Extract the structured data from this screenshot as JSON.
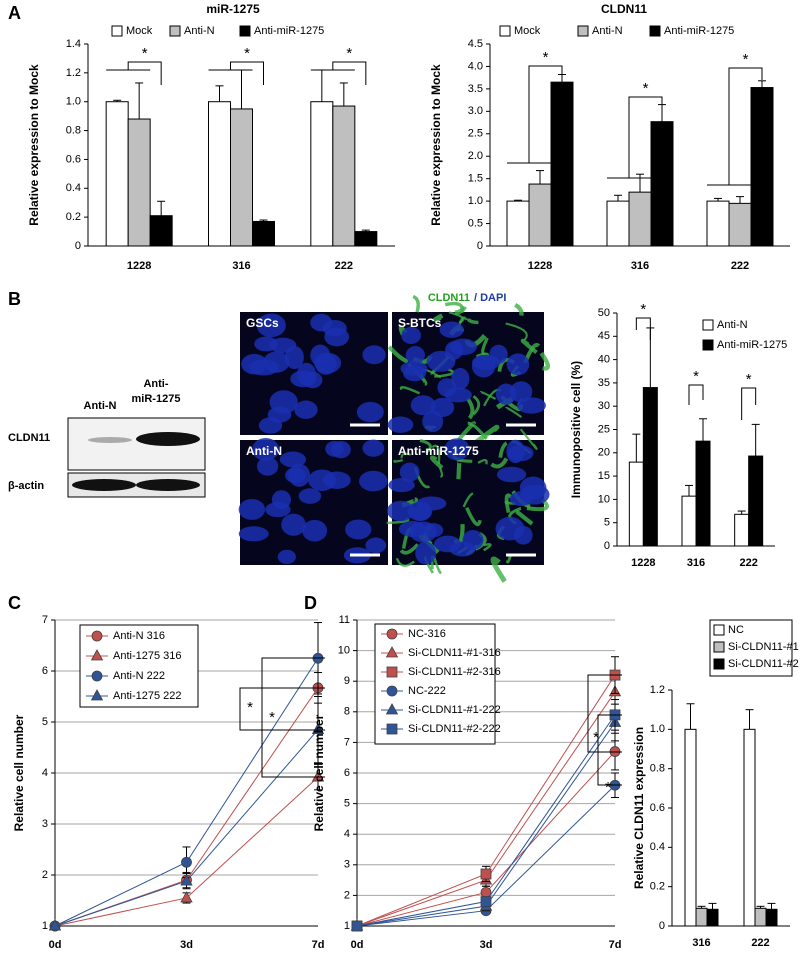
{
  "panel_labels": [
    "A",
    "B",
    "C",
    "D"
  ],
  "western_blot": {
    "lanes": [
      [
        "Anti-N"
      ],
      [
        "Anti-",
        "miR-1275"
      ]
    ],
    "rows": [
      "CLDN11",
      "β-actin"
    ]
  },
  "micrographs": {
    "stain": [
      "CLDN11",
      "/ DAPI"
    ],
    "panels": [
      "GSCs",
      "S-BTCs",
      "Anti-N",
      "Anti-miR-1275"
    ]
  },
  "chart_data": [
    {
      "type": "bar",
      "title": "miR-1275",
      "y_label": "Relative expression to Mock",
      "categories": [
        "1228",
        "316",
        "222"
      ],
      "series": [
        {
          "name": "Mock",
          "color": "#ffffff",
          "values": [
            1.0,
            1.0,
            1.0
          ],
          "errors": [
            0.01,
            0.11,
            0.22
          ]
        },
        {
          "name": "Anti-N",
          "color": "#bfbfbf",
          "values": [
            0.88,
            0.95,
            0.97
          ],
          "errors": [
            0.25,
            0.27,
            0.16
          ]
        },
        {
          "name": "Anti-miR-1275",
          "color": "#000000",
          "values": [
            0.21,
            0.17,
            0.1
          ],
          "errors": [
            0.1,
            0.01,
            0.01
          ]
        }
      ],
      "ylim": [
        0,
        1.4
      ],
      "yticks": [
        0,
        0.2,
        0.4,
        0.6,
        0.8,
        {
          "value": 1,
          "label": "1.0"
        },
        1.2,
        1.4
      ],
      "annotations": [
        "*",
        "*",
        "*"
      ]
    },
    {
      "type": "bar",
      "title": "CLDN11",
      "y_label": "Relative expression to Mock",
      "categories": [
        "1228",
        "316",
        "222"
      ],
      "series": [
        {
          "name": "Mock",
          "color": "#ffffff",
          "values": [
            1.0,
            1.0,
            1.0
          ],
          "errors": [
            0.02,
            0.13,
            0.06
          ]
        },
        {
          "name": "Anti-N",
          "color": "#bfbfbf",
          "values": [
            1.38,
            1.2,
            0.95
          ],
          "errors": [
            0.3,
            0.4,
            0.15
          ]
        },
        {
          "name": "Anti-miR-1275",
          "color": "#000000",
          "values": [
            3.65,
            2.77,
            3.53
          ],
          "errors": [
            0.17,
            0.38,
            0.15
          ]
        }
      ],
      "ylim": [
        0,
        4.5
      ],
      "yticks": [
        0,
        0.5,
        {
          "value": 1,
          "label": "1.0"
        },
        1.5,
        {
          "value": 2,
          "label": "2.0"
        },
        2.5,
        {
          "value": 3,
          "label": "3.0"
        },
        3.5,
        {
          "value": 4,
          "label": "4.0"
        },
        4.5
      ],
      "annotations": [
        "*",
        "*",
        "*"
      ]
    },
    {
      "type": "bar",
      "y_label": "Immunopositive cell (%)",
      "categories": [
        "1228",
        "316",
        "222"
      ],
      "series": [
        {
          "name": "Anti-N",
          "color": "#ffffff",
          "values": [
            18,
            10.7,
            6.8
          ],
          "errors": [
            6,
            2.3,
            0.7
          ]
        },
        {
          "name": "Anti-miR-1275",
          "color": "#000000",
          "values": [
            34,
            22.5,
            19.3
          ],
          "errors": [
            12.8,
            4.8,
            6.8
          ]
        }
      ],
      "ylim": [
        0,
        50
      ],
      "yticks": [
        0,
        5,
        10,
        15,
        20,
        25,
        30,
        35,
        40,
        45,
        50
      ],
      "annotations": [
        "*",
        "*",
        "*"
      ]
    },
    {
      "type": "line",
      "y_label": "Relative cell number",
      "categories": [
        "0d",
        "3d",
        "7d"
      ],
      "series": [
        {
          "name": "Anti-N 316",
          "color": "#c0504d",
          "marker": "circle",
          "values": [
            1,
            1.9,
            5.67
          ],
          "errors": [
            0,
            0.15,
            0.3
          ]
        },
        {
          "name": "Anti-1275 316",
          "color": "#c0504d",
          "marker": "triangle",
          "values": [
            1,
            1.55,
            3.92
          ],
          "errors": [
            0,
            0.1,
            0.25
          ]
        },
        {
          "name": "Anti-N 222",
          "color": "#2f5597",
          "marker": "circle",
          "values": [
            1,
            2.25,
            6.25
          ],
          "errors": [
            0,
            0.3,
            0.7
          ]
        },
        {
          "name": "Anti-1275 222",
          "color": "#2f5597",
          "marker": "triangle",
          "values": [
            1,
            1.88,
            4.85
          ],
          "errors": [
            0,
            0.15,
            0.65
          ]
        }
      ],
      "ylim": [
        1,
        7
      ],
      "yticks": [
        1,
        2,
        3,
        4,
        5,
        6,
        7
      ],
      "grid": true,
      "annotations": [
        "*",
        "*"
      ]
    },
    {
      "type": "line",
      "y_label": "Relative cell number",
      "categories": [
        "0d",
        "3d",
        "7d"
      ],
      "series": [
        {
          "name": "NC-316",
          "color": "#c0504d",
          "marker": "circle",
          "values": [
            1,
            2.1,
            6.7
          ],
          "errors": [
            0,
            0.2,
            0.6
          ]
        },
        {
          "name": "Si-CLDN11-#1-316",
          "color": "#c0504d",
          "marker": "triangle",
          "values": [
            1,
            2.5,
            8.65
          ],
          "errors": [
            0,
            0.2,
            0.7
          ]
        },
        {
          "name": "Si-CLDN11-#2-316",
          "color": "#c0504d",
          "marker": "square",
          "values": [
            1,
            2.7,
            9.2
          ],
          "errors": [
            0,
            0.25,
            0.6
          ]
        },
        {
          "name": "NC-222",
          "color": "#2f5597",
          "marker": "circle",
          "values": [
            1,
            1.5,
            5.6
          ],
          "errors": [
            0,
            0.1,
            0.4
          ]
        },
        {
          "name": "Si-CLDN11-#1-222",
          "color": "#2f5597",
          "marker": "triangle",
          "values": [
            1,
            1.65,
            7.65
          ],
          "errors": [
            0,
            0.15,
            0.6
          ]
        },
        {
          "name": "Si-CLDN11-#2-222",
          "color": "#2f5597",
          "marker": "square",
          "values": [
            1,
            1.8,
            7.9
          ],
          "errors": [
            0,
            0.15,
            0.5
          ]
        }
      ],
      "ylim": [
        1,
        11
      ],
      "yticks": [
        1,
        2,
        3,
        4,
        5,
        6,
        7,
        8,
        9,
        10,
        11
      ],
      "grid": true,
      "annotations": [
        "*",
        "*"
      ]
    },
    {
      "type": "bar",
      "y_label": "Relative CLDN11 expression",
      "categories": [
        "316",
        "222"
      ],
      "series": [
        {
          "name": "NC",
          "color": "#ffffff",
          "values": [
            1.0,
            1.0
          ],
          "errors": [
            0.13,
            0.1
          ]
        },
        {
          "name": "Si-CLDN11-#1",
          "color": "#bfbfbf",
          "values": [
            0.09,
            0.09
          ],
          "errors": [
            0.01,
            0.01
          ]
        },
        {
          "name": "Si-CLDN11-#2",
          "color": "#000000",
          "values": [
            0.085,
            0.085
          ],
          "errors": [
            0.03,
            0.03
          ]
        }
      ],
      "ylim": [
        0,
        1.2
      ],
      "yticks": [
        0,
        0.2,
        0.4,
        0.6,
        0.8,
        {
          "value": 1,
          "label": "1.0"
        },
        1.2
      ]
    }
  ]
}
